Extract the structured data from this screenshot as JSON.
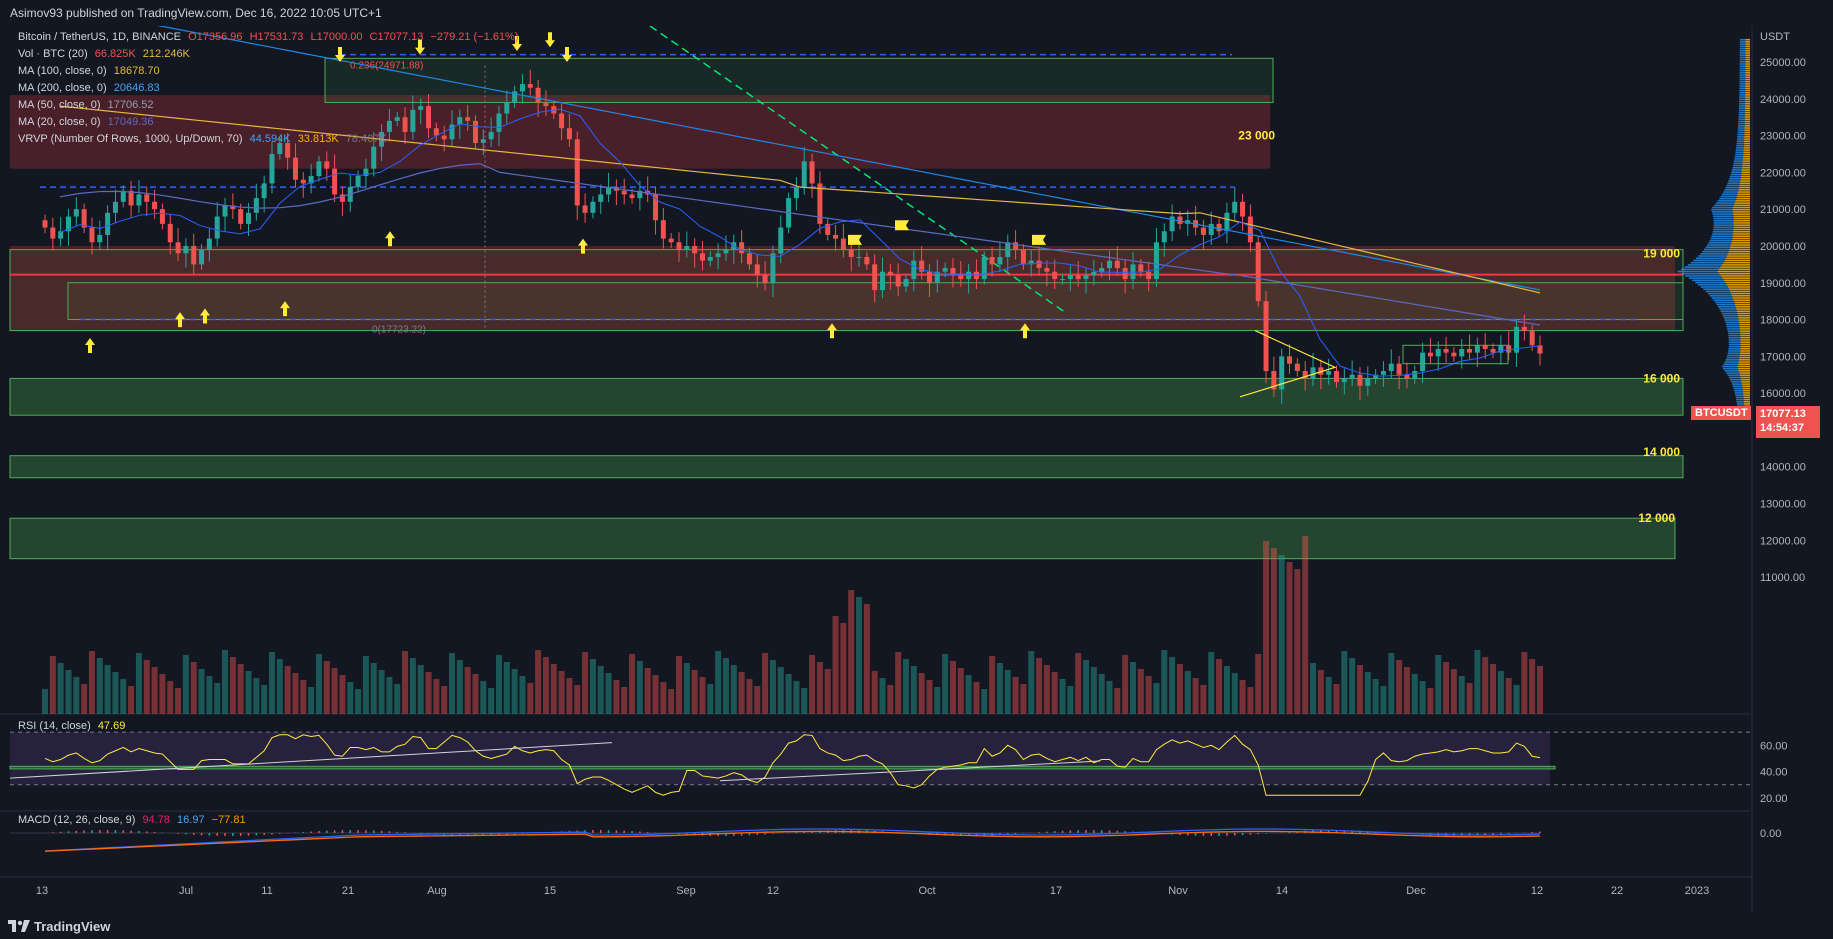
{
  "header": {
    "published": "Asimov93 published on TradingView.com, Dec 16, 2022 10:05 UTC+1"
  },
  "legend": {
    "symbol": "Bitcoin / TetherUS, 1D, BINANCE",
    "o": "O17356.96",
    "h": "H17531.73",
    "l": "L17000.00",
    "c": "C17077.13",
    "chg": "−279.21 (−1.61%)",
    "vol_label": "Vol · BTC (20)",
    "vol_v1": "66.825K",
    "vol_v2": "212.246K",
    "ma100_label": "MA (100, close, 0)",
    "ma100_val": "18678.70",
    "ma200_label": "MA (200, close, 0)",
    "ma200_val": "20646.83",
    "ma50_label": "MA (50, close, 0)",
    "ma50_val": "17706.52",
    "ma20_label": "MA (20, close, 0)",
    "ma20_val": "17049.36",
    "vrvp_label": "VRVP (Number Of Rows, 1000, Up/Down, 70)",
    "vrvp_v1": "44.594K",
    "vrvp_v2": "33.813K",
    "vrvp_v3": "78.407K"
  },
  "price_axis": {
    "unit": "USDT",
    "ticks": [
      "25000.00",
      "24000.00",
      "23000.00",
      "22000.00",
      "21000.00",
      "20000.00",
      "19000.00",
      "18000.00",
      "17000.00",
      "16000.00",
      "15000.00",
      "14000.00",
      "13000.00",
      "12000.00",
      "11000.00"
    ],
    "symbol_tag": "BTCUSDT",
    "last_price": "17077.13",
    "countdown": "14:54:37"
  },
  "zone_labels": [
    "23 000",
    "19 000",
    "16 000",
    "14 000",
    "12 000"
  ],
  "fib_labels": {
    "top": "0.236(24971.88)",
    "bottom": "0(17723.22)"
  },
  "rsi": {
    "label": "RSI (14, close)",
    "value": "47.69",
    "ticks": [
      "60.00",
      "40.00",
      "20.00"
    ]
  },
  "macd": {
    "label": "MACD (12, 26, close, 9)",
    "v1": "94.78",
    "v2": "16.97",
    "v3": "−77.81",
    "tick": "0.00"
  },
  "time_axis": {
    "labels": [
      "13",
      "Jul",
      "11",
      "21",
      "Aug",
      "15",
      "Sep",
      "12",
      "Oct",
      "17",
      "Nov",
      "14",
      "Dec",
      "12",
      "22",
      "2023"
    ]
  },
  "footer": {
    "brand": "TradingView"
  },
  "colors": {
    "up": "#26a69a",
    "down": "#ef5350",
    "zone_green": "#4caf50",
    "zone_red": "#8b2a33",
    "accent_yellow": "#ffeb3b",
    "ma_yellow": "#e5b83c",
    "ma_blue": "#2962ff"
  },
  "chart_data": {
    "type": "candlestick",
    "title": "Bitcoin / TetherUS, 1D, BINANCE",
    "ylim": [
      10200,
      25800
    ],
    "close_path": [
      20500,
      20200,
      20400,
      20800,
      21000,
      20500,
      20100,
      20300,
      20900,
      21200,
      21500,
      21100,
      21400,
      21200,
      21000,
      20600,
      20100,
      19800,
      20000,
      19500,
      19900,
      20200,
      20800,
      21100,
      21000,
      20600,
      20900,
      21300,
      21700,
      22500,
      22800,
      22400,
      21800,
      21700,
      21900,
      22300,
      22100,
      21400,
      21200,
      21600,
      21900,
      22100,
      22700,
      23100,
      23400,
      23500,
      23100,
      23700,
      23800,
      23200,
      23000,
      22900,
      23300,
      23500,
      23400,
      22800,
      22900,
      23100,
      23600,
      23900,
      24200,
      24400,
      24300,
      23900,
      23800,
      23600,
      23200,
      22900,
      21100,
      20900,
      21200,
      21400,
      21600,
      21500,
      21400,
      21300,
      21500,
      21400,
      20700,
      20200,
      20100,
      19900,
      20000,
      19800,
      19600,
      19700,
      19800,
      19900,
      20100,
      19800,
      19500,
      19200,
      19000,
      19800,
      20500,
      21300,
      21600,
      22300,
      21700,
      20600,
      20300,
      20200,
      19900,
      19700,
      19700,
      19500,
      18800,
      19300,
      19200,
      18900,
      19100,
      19600,
      19300,
      19000,
      19300,
      19400,
      19200,
      19100,
      19300,
      19100,
      19700,
      19500,
      19700,
      20100,
      19900,
      19500,
      19600,
      19400,
      19300,
      19100,
      19100,
      19200,
      19100,
      19200,
      19300,
      19400,
      19600,
      19400,
      19100,
      19500,
      19300,
      19100,
      20100,
      20400,
      20800,
      20600,
      20700,
      20500,
      20300,
      20600,
      20400,
      20900,
      21200,
      20800,
      20100,
      18500,
      16600,
      16100,
      17000,
      16800,
      16600,
      16400,
      16700,
      16500,
      16600,
      16300,
      16400,
      16500,
      16200,
      16400,
      16500,
      16600,
      16800,
      16500,
      16400,
      16600,
      17100,
      17000,
      17200,
      17100,
      17000,
      17200,
      17100,
      17300,
      17200,
      17100,
      17300,
      17100,
      17800,
      17700,
      17300,
      17077
    ],
    "close_path_note_only": "",
    "ma_series": [
      {
        "name": "MA (100, close, 0)",
        "value": 18678.7
      },
      {
        "name": "MA (200, close, 0)",
        "value": 20646.83
      },
      {
        "name": "MA (50, close, 0)",
        "value": 17706.52
      },
      {
        "name": "MA (20, close, 0)",
        "value": 17049.36
      }
    ],
    "horizontal_levels": [
      19200,
      18000,
      21600,
      25200
    ],
    "zones": [
      {
        "label": "23 000",
        "low": 22100,
        "high": 25100
      },
      {
        "label": "19 000",
        "low": 17700,
        "high": 19900
      },
      {
        "label": "16 000",
        "low": 15400,
        "high": 16400
      },
      {
        "label": "14 000",
        "low": 13700,
        "high": 14300
      },
      {
        "label": "12 000",
        "low": 11500,
        "high": 12600
      }
    ],
    "rsi_last": 47.69,
    "macd_values": [
      94.78,
      16.97,
      -77.81
    ]
  }
}
